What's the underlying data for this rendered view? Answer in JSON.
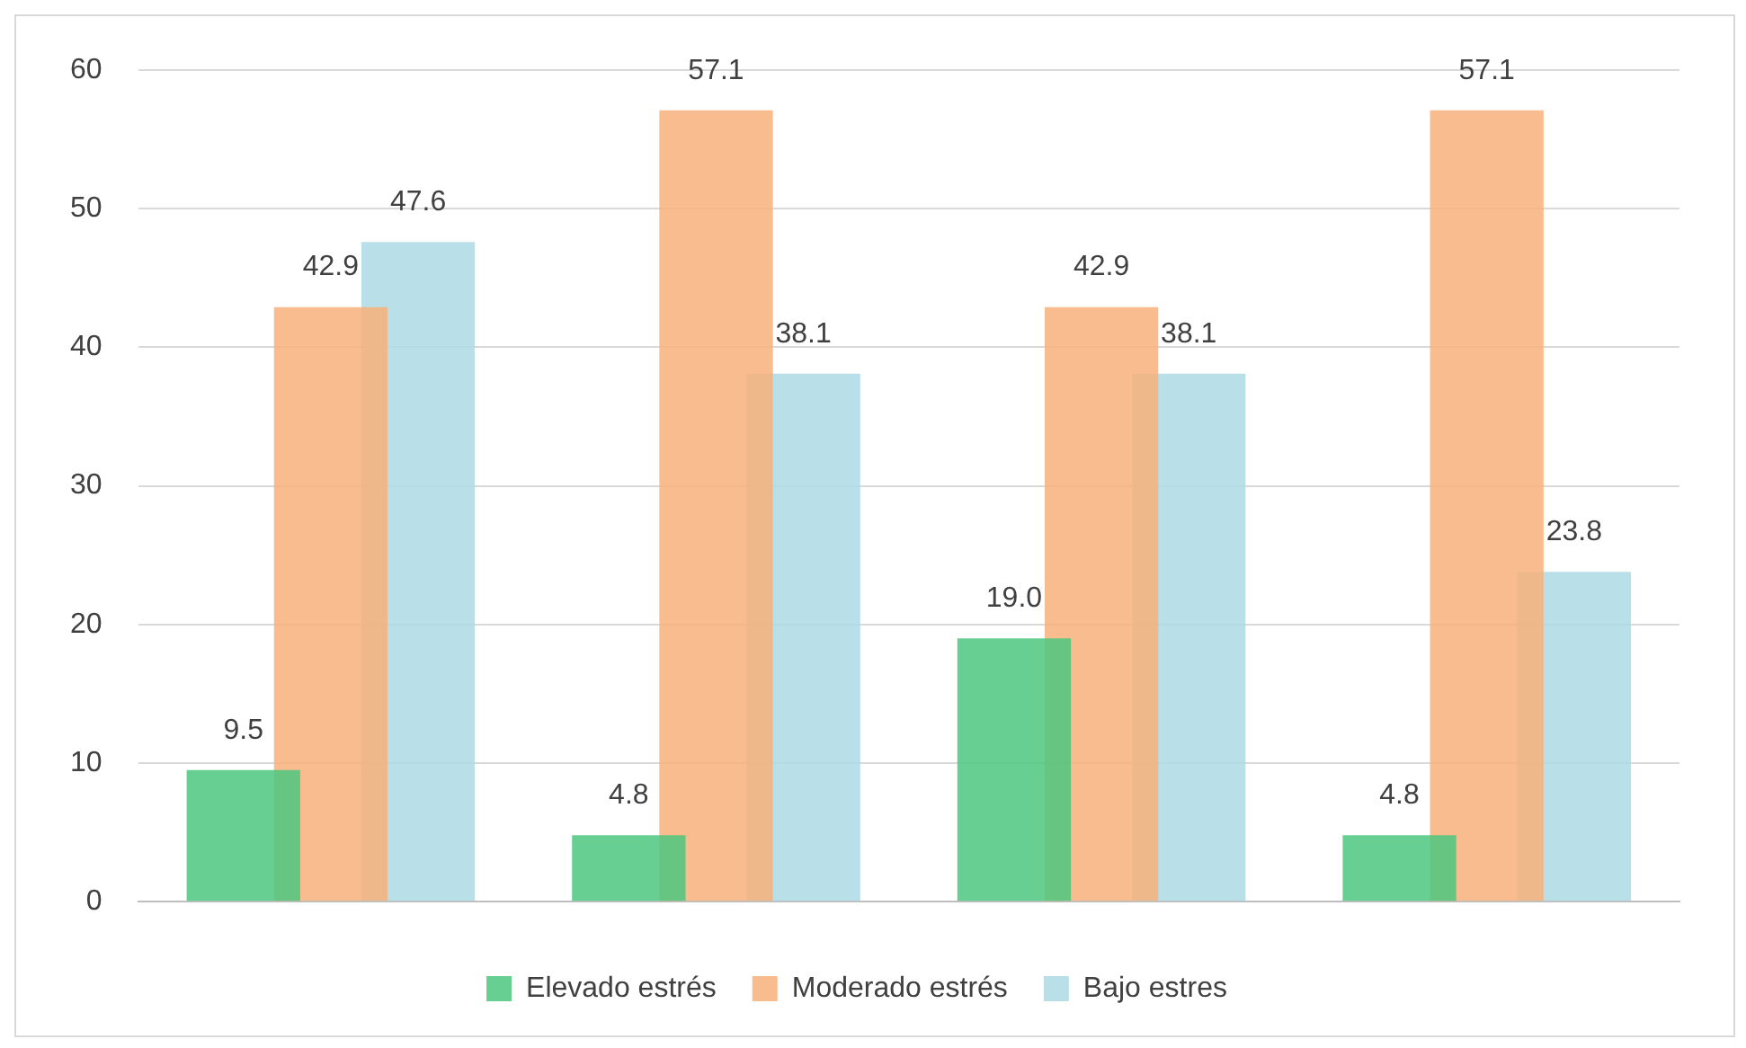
{
  "chart_data": {
    "type": "bar",
    "categories": [
      null,
      null,
      null,
      null
    ],
    "series": [
      {
        "name": "Elevado estrés",
        "color": "#4cc77f",
        "values": [
          9.5,
          4.8,
          19.0,
          4.8
        ],
        "value_labels": [
          "9.5",
          "4.8",
          "19.0",
          "4.8"
        ]
      },
      {
        "name": "Moderado estrés",
        "color": "#f8b07a",
        "values": [
          42.9,
          57.1,
          42.9,
          57.1
        ],
        "value_labels": [
          "42.9",
          "57.1",
          "42.9",
          "57.1"
        ]
      },
      {
        "name": "Bajo estres",
        "color": "#addbe5",
        "values": [
          47.6,
          38.1,
          38.1,
          23.8
        ],
        "value_labels": [
          "47.6",
          "38.1",
          "38.1",
          "23.8"
        ]
      }
    ],
    "ylim": [
      0,
      60
    ],
    "yticks": [
      0,
      10,
      20,
      30,
      40,
      50,
      60
    ],
    "grid": "y",
    "legend": "bottom"
  }
}
